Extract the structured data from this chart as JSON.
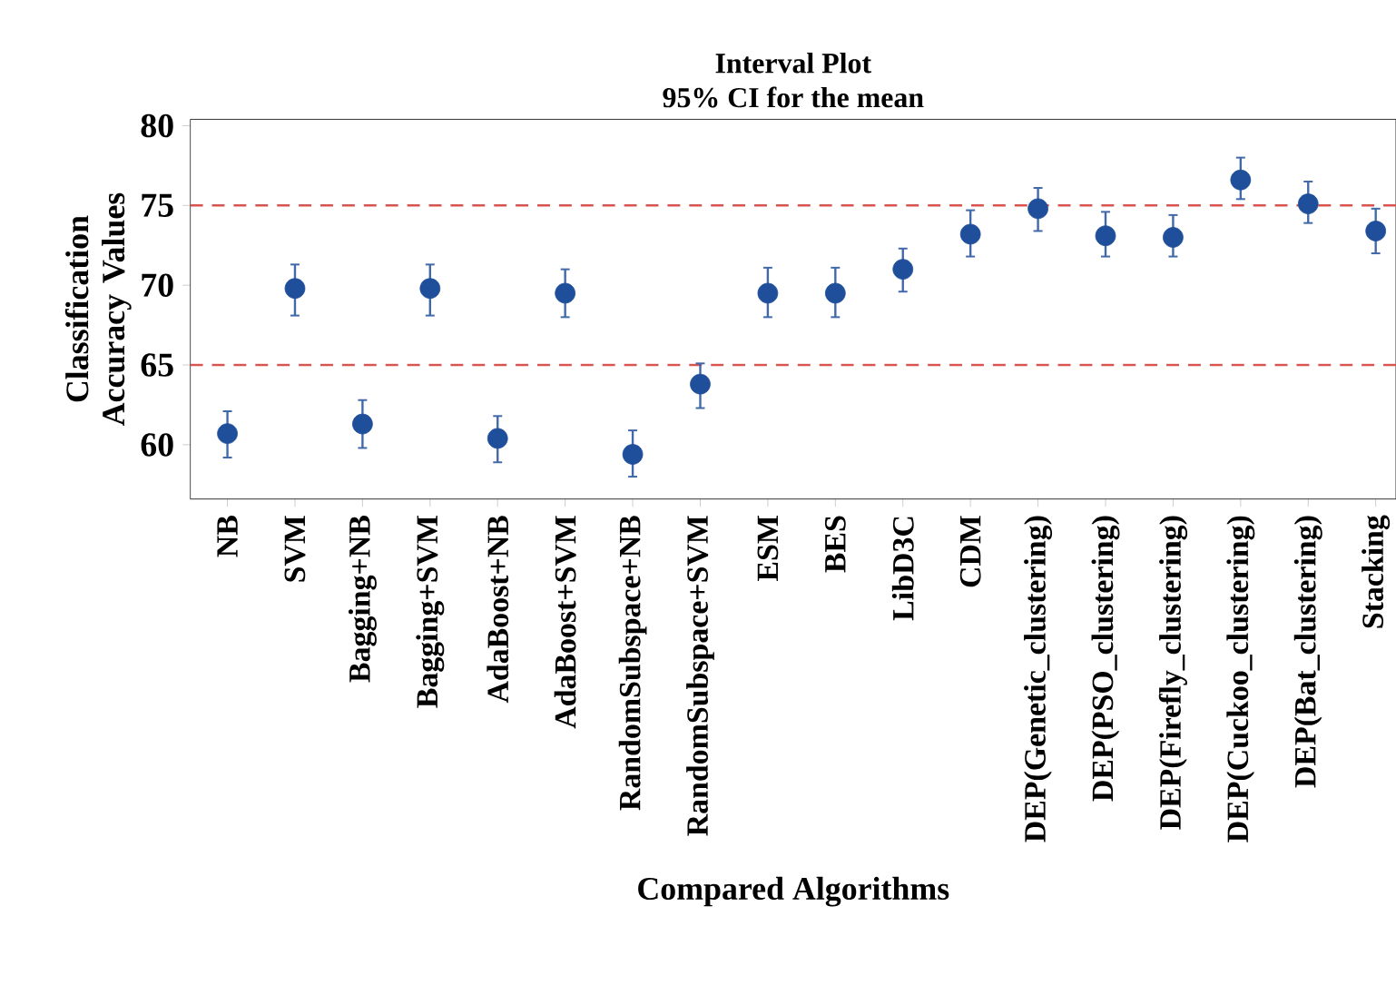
{
  "chart_data": {
    "type": "scatter",
    "title": "Interval Plot",
    "subtitle": "95% CI for the mean",
    "xlabel": "Compared Algorithms",
    "ylabel": "Classification Accuracy Values",
    "categories": [
      "NB",
      "SVM",
      "Bagging+NB",
      "Bagging+SVM",
      "AdaBoost+NB",
      "AdaBoost+SVM",
      "RandomSubspace+NB",
      "RandomSubspace+SVM",
      "ESM",
      "BES",
      "LibD3C",
      "CDM",
      "DEP(Genetic_clustering)",
      "DEP(PSO_clustering)",
      "DEP(Firefly_clustering)",
      "DEP(Cuckoo_clustering)",
      "DEP(Bat_clustering)",
      "Stacking"
    ],
    "values": [
      60.7,
      69.8,
      61.3,
      69.8,
      60.4,
      69.5,
      59.4,
      63.8,
      69.5,
      69.5,
      71.0,
      73.2,
      74.8,
      73.1,
      73.0,
      76.6,
      75.1,
      73.4
    ],
    "errors": [
      [
        59.2,
        62.1
      ],
      [
        68.1,
        71.3
      ],
      [
        59.8,
        62.8
      ],
      [
        68.1,
        71.3
      ],
      [
        58.9,
        61.8
      ],
      [
        68.0,
        71.0
      ],
      [
        58.0,
        60.9
      ],
      [
        62.3,
        65.1
      ],
      [
        68.0,
        71.1
      ],
      [
        68.0,
        71.1
      ],
      [
        69.6,
        72.3
      ],
      [
        71.8,
        74.7
      ],
      [
        73.4,
        76.1
      ],
      [
        71.8,
        74.6
      ],
      [
        71.8,
        74.4
      ],
      [
        75.4,
        78.0
      ],
      [
        73.9,
        76.5
      ],
      [
        72.0,
        74.8
      ]
    ],
    "color": "#1f4e9a",
    "marker": "circle",
    "ylim": [
      56.6,
      80.4
    ],
    "yticks": [
      60,
      65,
      70,
      75,
      80
    ],
    "grid": false,
    "ref_lines": [
      {
        "axis": "y",
        "value": 65,
        "color": "#d9534f",
        "line_style": "dashed"
      },
      {
        "axis": "y",
        "value": 75,
        "color": "#d9534f",
        "line_style": "dashed"
      }
    ]
  }
}
